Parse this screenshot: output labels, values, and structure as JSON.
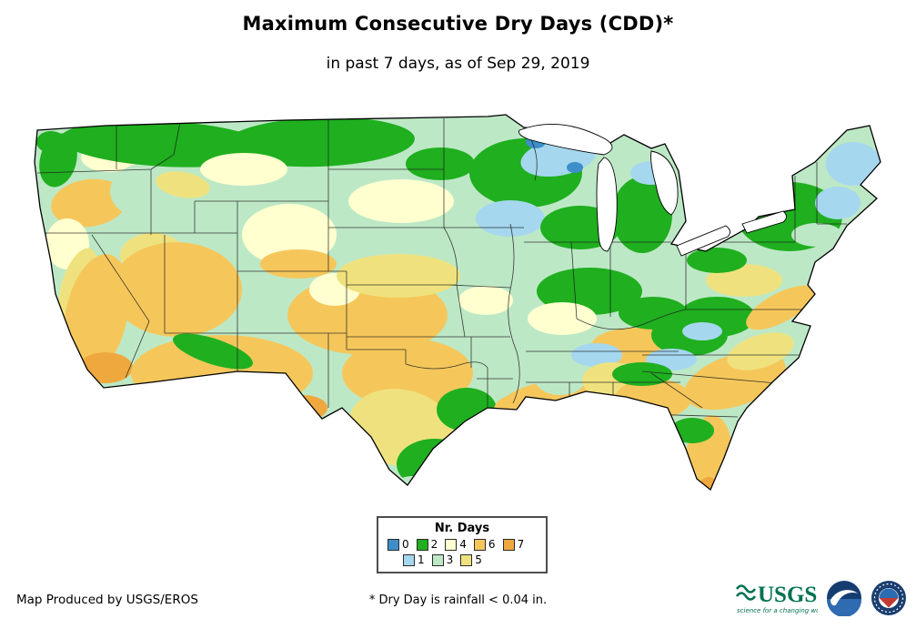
{
  "page": {
    "title": "Maximum Consecutive Dry Days (CDD)*",
    "subtitle": "in past 7 days, as of Sep 29, 2019"
  },
  "legend": {
    "title": "Nr. Days",
    "entries": [
      {
        "label": "0",
        "color": "#3D8EC9"
      },
      {
        "label": "1",
        "color": "#A5D7EE"
      },
      {
        "label": "2",
        "color": "#1FAF1F"
      },
      {
        "label": "3",
        "color": "#BDE8C6"
      },
      {
        "label": "4",
        "color": "#FFFFCF"
      },
      {
        "label": "5",
        "color": "#EFE27E"
      },
      {
        "label": "6",
        "color": "#F5C75B"
      },
      {
        "label": "7",
        "color": "#EFA83E"
      }
    ]
  },
  "footer": {
    "produced_by": "Map Produced by USGS/EROS",
    "note": "* Dry Day is rainfall < 0.04 in."
  },
  "logos": {
    "usgs": {
      "text": "USGS",
      "tagline": "science for a changing world"
    },
    "noaa": {
      "name": "noaa-logo"
    },
    "nws": {
      "name": "nws-logo"
    }
  }
}
